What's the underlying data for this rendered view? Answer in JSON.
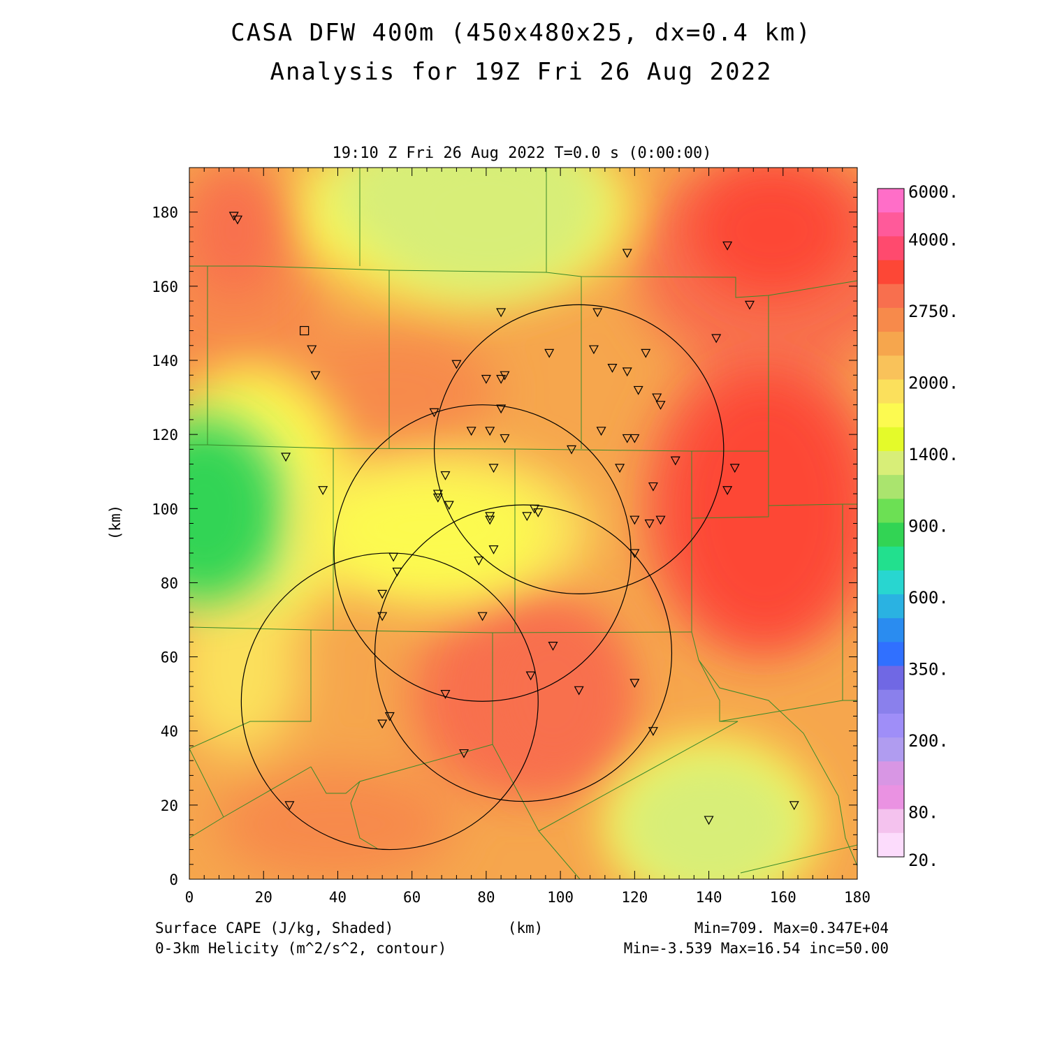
{
  "header": {
    "title_line1": "CASA DFW 400m (450x480x25, dx=0.4 km)",
    "title_line2": "Analysis for 19Z Fri 26 Aug 2022",
    "valid_time": "19:10 Z Fri 26 Aug 2022   T=0.0 s (0:00:00)"
  },
  "axes": {
    "x_unit": "(km)",
    "y_unit": "(km)",
    "x_ticks": [
      "0",
      "20",
      "40",
      "60",
      "80",
      "100",
      "120",
      "140",
      "160",
      "180"
    ],
    "y_ticks": [
      "0",
      "20",
      "40",
      "60",
      "80",
      "100",
      "120",
      "140",
      "160",
      "180"
    ],
    "x_range": [
      0,
      180
    ],
    "y_range": [
      0,
      192
    ]
  },
  "footer": {
    "left_line1": "Surface CAPE (J/kg, Shaded)",
    "left_line2": "0-3km Helicity (m^2/s^2, contour)",
    "right_line1": "Min=709. Max=0.347E+04",
    "right_line2": "Min=-3.539 Max=16.54 inc=50.00"
  },
  "colorbar": {
    "labels": [
      "6000.",
      "4000.",
      "2750.",
      "2000.",
      "1400.",
      "900.",
      "600.",
      "350.",
      "200.",
      "80.",
      "20."
    ],
    "colors_top_to_bottom": [
      "#ff6ec8",
      "#ff5a9a",
      "#ff4a6e",
      "#fd4736",
      "#f86f4e",
      "#f78a4b",
      "#f6a64d",
      "#f9c25a",
      "#fbe05c",
      "#fcfa50",
      "#e4fa2a",
      "#d8ee78",
      "#aae46e",
      "#6ce054",
      "#32d454",
      "#22e08e",
      "#28d6d0",
      "#2ab2e2",
      "#2a8cf0",
      "#3070ff",
      "#7068e4",
      "#8a80ec",
      "#9f8ef8",
      "#b09cf0",
      "#d896e4",
      "#ea92e2",
      "#f4c2ee",
      "#fcdcfc"
    ]
  },
  "map_data": {
    "cape_blobs": [
      {
        "x": 12,
        "y": 175,
        "rx": 12,
        "ry": 18,
        "value": 3200
      },
      {
        "x": 157,
        "y": 175,
        "rx": 22,
        "ry": 18,
        "value": 3400
      },
      {
        "x": 155,
        "y": 100,
        "rx": 26,
        "ry": 36,
        "value": 3300
      },
      {
        "x": 98,
        "y": 50,
        "rx": 20,
        "ry": 24,
        "value": 3000
      },
      {
        "x": 4,
        "y": 100,
        "rx": 20,
        "ry": 24,
        "value": 800
      },
      {
        "x": 80,
        "y": 180,
        "rx": 30,
        "ry": 22,
        "value": 1300
      },
      {
        "x": 140,
        "y": 15,
        "rx": 24,
        "ry": 17,
        "value": 1350
      },
      {
        "x": 65,
        "y": 95,
        "rx": 32,
        "ry": 14,
        "value": 1750
      }
    ],
    "radar_rings": [
      {
        "x": 105,
        "y": 116,
        "r": 39
      },
      {
        "x": 79,
        "y": 88,
        "r": 40
      },
      {
        "x": 90,
        "y": 61,
        "r": 40
      },
      {
        "x": 54,
        "y": 48,
        "r": 40
      }
    ],
    "station_square": {
      "x": 31,
      "y": 148
    },
    "stations": [
      [
        12,
        179
      ],
      [
        13,
        178
      ],
      [
        118,
        169
      ],
      [
        145,
        171
      ],
      [
        151,
        155
      ],
      [
        84,
        153
      ],
      [
        110,
        153
      ],
      [
        33,
        143
      ],
      [
        34,
        136
      ],
      [
        97,
        142
      ],
      [
        109,
        143
      ],
      [
        123,
        142
      ],
      [
        72,
        139
      ],
      [
        80,
        135
      ],
      [
        85,
        136
      ],
      [
        84,
        135
      ],
      [
        114,
        138
      ],
      [
        118,
        137
      ],
      [
        121,
        132
      ],
      [
        126,
        130
      ],
      [
        127,
        128
      ],
      [
        142,
        146
      ],
      [
        84,
        127
      ],
      [
        66,
        126
      ],
      [
        76,
        121
      ],
      [
        81,
        121
      ],
      [
        85,
        119
      ],
      [
        111,
        121
      ],
      [
        118,
        119
      ],
      [
        120,
        119
      ],
      [
        103,
        116
      ],
      [
        26,
        114
      ],
      [
        82,
        111
      ],
      [
        116,
        111
      ],
      [
        131,
        113
      ],
      [
        147,
        111
      ],
      [
        36,
        105
      ],
      [
        69,
        109
      ],
      [
        67,
        104
      ],
      [
        67,
        103
      ],
      [
        70,
        101
      ],
      [
        93,
        100
      ],
      [
        94,
        99
      ],
      [
        125,
        106
      ],
      [
        145,
        105
      ],
      [
        81,
        98
      ],
      [
        81,
        97
      ],
      [
        91,
        98
      ],
      [
        120,
        97
      ],
      [
        124,
        96
      ],
      [
        127,
        97
      ],
      [
        82,
        89
      ],
      [
        120,
        88
      ],
      [
        55,
        87
      ],
      [
        56,
        83
      ],
      [
        78,
        86
      ],
      [
        52,
        77
      ],
      [
        52,
        71
      ],
      [
        79,
        71
      ],
      [
        98,
        63
      ],
      [
        92,
        55
      ],
      [
        105,
        51
      ],
      [
        69,
        50
      ],
      [
        120,
        53
      ],
      [
        54,
        44
      ],
      [
        52,
        42
      ],
      [
        125,
        40
      ],
      [
        74,
        34
      ],
      [
        27,
        20
      ],
      [
        163,
        20
      ],
      [
        140,
        16
      ]
    ]
  }
}
